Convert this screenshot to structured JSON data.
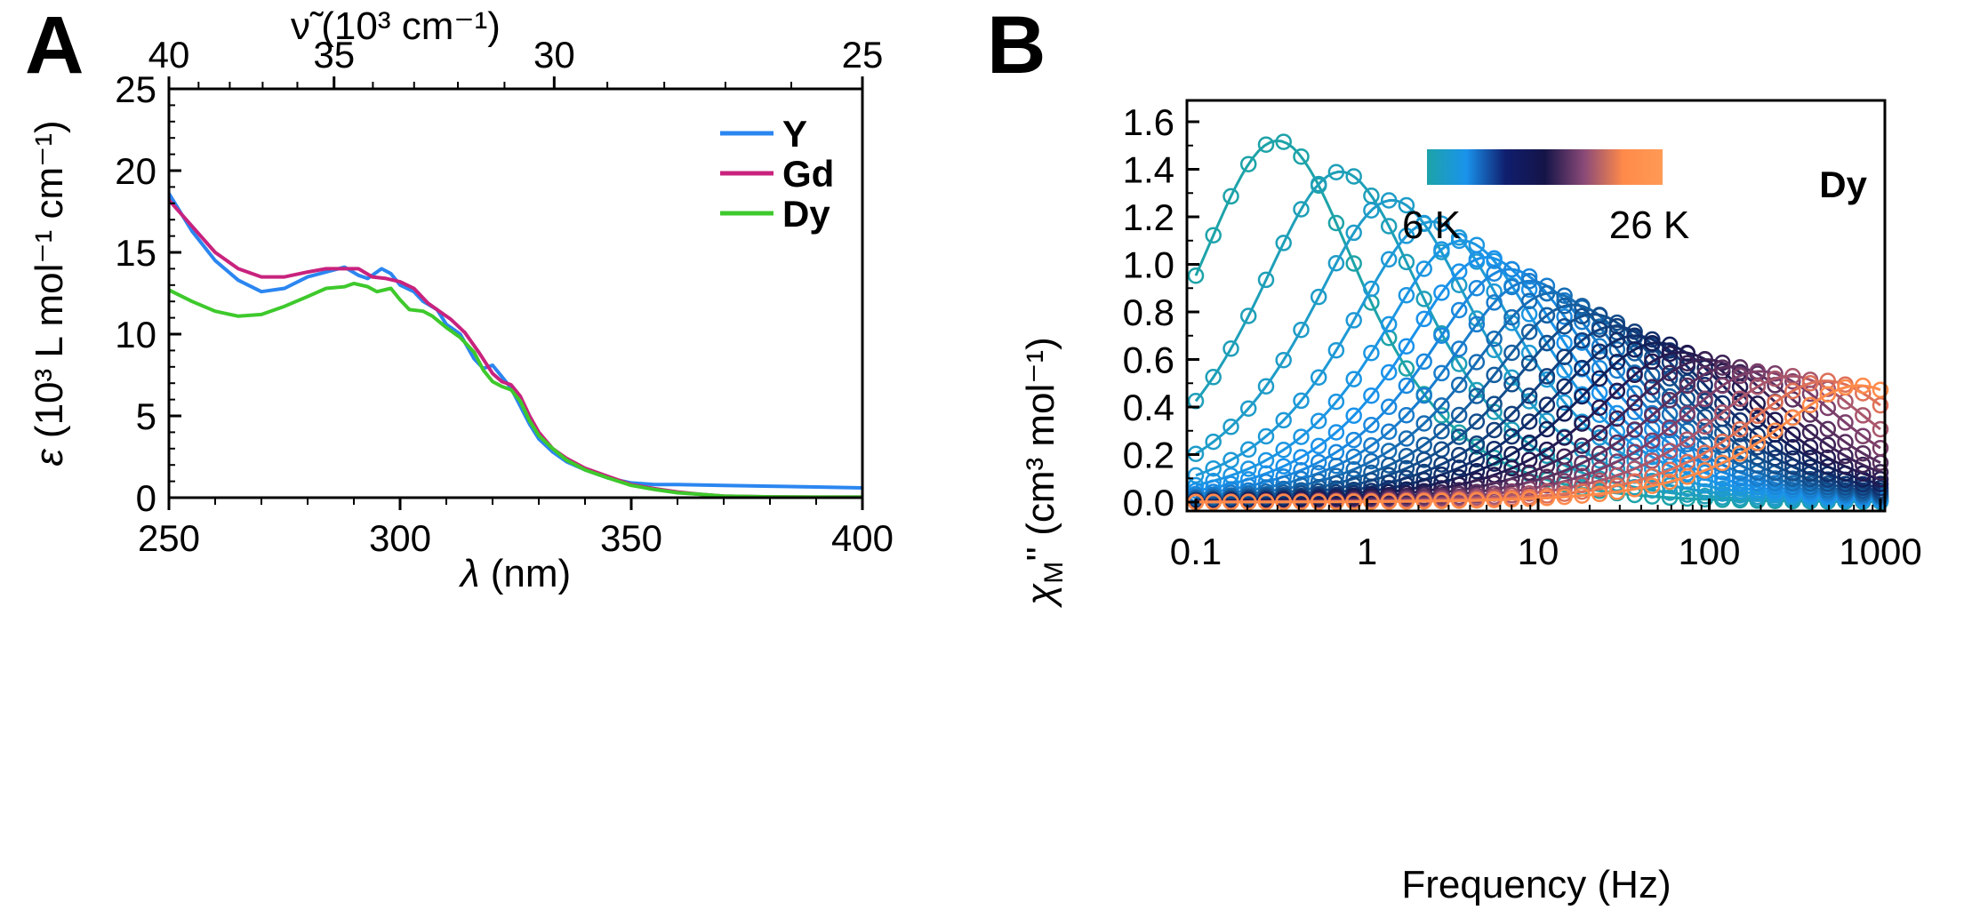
{
  "chart_data": [
    {
      "type": "line",
      "panel_label": "A",
      "xlabel_symbol": "λ",
      "xlabel_unit": " (nm)",
      "ylabel_symbol": "ε",
      "ylabel_unit": " (10³ L mol⁻¹ cm⁻¹)",
      "top_axis_label": "ν̃ (10³ cm⁻¹)",
      "xlim": [
        250,
        400
      ],
      "ylim": [
        0,
        25
      ],
      "x_ticks": [
        "250",
        "300",
        "350",
        "400"
      ],
      "y_ticks": [
        "0",
        "5",
        "10",
        "15",
        "20",
        "25"
      ],
      "top_ticks": [
        {
          "wavenumber": 40,
          "label": "40"
        },
        {
          "wavenumber": 35,
          "label": "35"
        },
        {
          "wavenumber": 30,
          "label": "30"
        },
        {
          "wavenumber": 25,
          "label": "25"
        }
      ],
      "legend_position": "top-right",
      "grid": false,
      "series": [
        {
          "name": "Y",
          "color": "#2b86f0",
          "points": [
            [
              250,
              18.6
            ],
            [
              255,
              16.3
            ],
            [
              260,
              14.5
            ],
            [
              265,
              13.3
            ],
            [
              270,
              12.6
            ],
            [
              275,
              12.8
            ],
            [
              280,
              13.5
            ],
            [
              284,
              13.8
            ],
            [
              288,
              14.1
            ],
            [
              291,
              13.6
            ],
            [
              293,
              13.4
            ],
            [
              296,
              14.0
            ],
            [
              298,
              13.7
            ],
            [
              300,
              13.0
            ],
            [
              303,
              12.6
            ],
            [
              305,
              12.0
            ],
            [
              308,
              11.5
            ],
            [
              310,
              10.6
            ],
            [
              313,
              10.0
            ],
            [
              316,
              8.5
            ],
            [
              318,
              7.9
            ],
            [
              320,
              8.1
            ],
            [
              322,
              7.4
            ],
            [
              324,
              6.7
            ],
            [
              326,
              5.6
            ],
            [
              328,
              4.5
            ],
            [
              330,
              3.6
            ],
            [
              333,
              2.8
            ],
            [
              336,
              2.2
            ],
            [
              340,
              1.7
            ],
            [
              345,
              1.2
            ],
            [
              350,
              0.9
            ],
            [
              355,
              0.8
            ],
            [
              360,
              0.8
            ],
            [
              370,
              0.75
            ],
            [
              380,
              0.7
            ],
            [
              390,
              0.65
            ],
            [
              400,
              0.6
            ]
          ]
        },
        {
          "name": "Gd",
          "color": "#c8237e",
          "points": [
            [
              250,
              18.2
            ],
            [
              255,
              16.6
            ],
            [
              260,
              15.0
            ],
            [
              265,
              14.0
            ],
            [
              270,
              13.5
            ],
            [
              275,
              13.5
            ],
            [
              280,
              13.8
            ],
            [
              284,
              14.0
            ],
            [
              288,
              14.0
            ],
            [
              291,
              14.0
            ],
            [
              294,
              13.5
            ],
            [
              297,
              13.4
            ],
            [
              300,
              13.2
            ],
            [
              303,
              12.8
            ],
            [
              306,
              11.9
            ],
            [
              309,
              11.3
            ],
            [
              311,
              10.9
            ],
            [
              314,
              10.1
            ],
            [
              317,
              8.9
            ],
            [
              320,
              7.6
            ],
            [
              322,
              7.1
            ],
            [
              324,
              6.9
            ],
            [
              326,
              6.2
            ],
            [
              328,
              5.0
            ],
            [
              330,
              4.0
            ],
            [
              333,
              3.0
            ],
            [
              336,
              2.4
            ],
            [
              340,
              1.8
            ],
            [
              345,
              1.3
            ],
            [
              350,
              0.8
            ],
            [
              355,
              0.55
            ],
            [
              360,
              0.35
            ],
            [
              365,
              0.2
            ],
            [
              370,
              0.1
            ],
            [
              380,
              0.05
            ],
            [
              390,
              0.03
            ],
            [
              400,
              0.03
            ]
          ]
        },
        {
          "name": "Dy",
          "color": "#3ec92c",
          "points": [
            [
              250,
              12.7
            ],
            [
              255,
              12.0
            ],
            [
              260,
              11.4
            ],
            [
              265,
              11.1
            ],
            [
              270,
              11.2
            ],
            [
              275,
              11.7
            ],
            [
              280,
              12.3
            ],
            [
              284,
              12.8
            ],
            [
              288,
              12.9
            ],
            [
              290,
              13.1
            ],
            [
              293,
              12.9
            ],
            [
              295,
              12.6
            ],
            [
              298,
              12.8
            ],
            [
              300,
              12.1
            ],
            [
              302,
              11.5
            ],
            [
              305,
              11.4
            ],
            [
              307,
              11.1
            ],
            [
              310,
              10.4
            ],
            [
              313,
              9.8
            ],
            [
              316,
              8.9
            ],
            [
              318,
              7.8
            ],
            [
              320,
              7.1
            ],
            [
              322,
              6.8
            ],
            [
              324,
              6.6
            ],
            [
              326,
              5.9
            ],
            [
              328,
              4.7
            ],
            [
              330,
              3.8
            ],
            [
              333,
              3.0
            ],
            [
              336,
              2.3
            ],
            [
              340,
              1.7
            ],
            [
              345,
              1.2
            ],
            [
              350,
              0.75
            ],
            [
              355,
              0.5
            ],
            [
              360,
              0.3
            ],
            [
              365,
              0.2
            ],
            [
              370,
              0.1
            ],
            [
              380,
              0.05
            ],
            [
              390,
              0.03
            ],
            [
              400,
              0.03
            ]
          ]
        }
      ]
    },
    {
      "type": "scatter",
      "panel_label": "B",
      "xlabel": "Frequency (Hz)",
      "ylabel_symbol": "χ",
      "ylabel_sub": "M",
      "ylabel_unit": "'' (cm³ mol⁻¹)",
      "x_scale": "log",
      "xlim": [
        0.1,
        1000
      ],
      "ylim": [
        0,
        1.6
      ],
      "x_ticks": [
        {
          "value": 0.1,
          "label": "0.1"
        },
        {
          "value": 1,
          "label": "1"
        },
        {
          "value": 10,
          "label": "10"
        },
        {
          "value": 100,
          "label": "100"
        },
        {
          "value": 1000,
          "label": "1000"
        }
      ],
      "y_ticks": [
        "0.0",
        "0.2",
        "0.4",
        "0.6",
        "0.8",
        "1.0",
        "1.2",
        "1.4",
        "1.6"
      ],
      "annotation": "Dy",
      "colorbar": {
        "position": "top-center",
        "low_label": "6 K",
        "high_label": "26 K",
        "colors": [
          "#1da3a8",
          "#1a93ec",
          "#101e6e",
          "#141447",
          "#8a4a78",
          "#ff8a4a",
          "#ff9a55"
        ]
      },
      "markers": "open-circles",
      "fit_lines": true,
      "grid": false,
      "series": [
        {
          "temperature_K": 6,
          "peak_freq_Hz": 0.3,
          "peak_value": 1.52,
          "color": "#1da3a8"
        },
        {
          "temperature_K": 7,
          "peak_freq_Hz": 0.7,
          "peak_value": 1.39,
          "color": "#1e9fb8"
        },
        {
          "temperature_K": 8,
          "peak_freq_Hz": 1.4,
          "peak_value": 1.27,
          "color": "#1f9cc8"
        },
        {
          "temperature_K": 9,
          "peak_freq_Hz": 2.4,
          "peak_value": 1.18,
          "color": "#1e99d6"
        },
        {
          "temperature_K": 10,
          "peak_freq_Hz": 3.6,
          "peak_value": 1.1,
          "color": "#1c96e2"
        },
        {
          "temperature_K": 11,
          "peak_freq_Hz": 5.0,
          "peak_value": 1.03,
          "color": "#1a92ea"
        },
        {
          "temperature_K": 12,
          "peak_freq_Hz": 6.8,
          "peak_value": 0.98,
          "color": "#1a88de"
        },
        {
          "temperature_K": 13,
          "peak_freq_Hz": 9.0,
          "peak_value": 0.93,
          "color": "#197ccc"
        },
        {
          "temperature_K": 14,
          "peak_freq_Hz": 12,
          "peak_value": 0.88,
          "color": "#176db4"
        },
        {
          "temperature_K": 15,
          "peak_freq_Hz": 16,
          "peak_value": 0.83,
          "color": "#155ea0"
        },
        {
          "temperature_K": 16,
          "peak_freq_Hz": 21,
          "peak_value": 0.79,
          "color": "#134e8c"
        },
        {
          "temperature_K": 17,
          "peak_freq_Hz": 28,
          "peak_value": 0.74,
          "color": "#123f7c"
        },
        {
          "temperature_K": 18,
          "peak_freq_Hz": 37,
          "peak_value": 0.7,
          "color": "#112f6c"
        },
        {
          "temperature_K": 19,
          "peak_freq_Hz": 50,
          "peak_value": 0.67,
          "color": "#12205a"
        },
        {
          "temperature_K": 20,
          "peak_freq_Hz": 68,
          "peak_value": 0.63,
          "color": "#241a52"
        },
        {
          "temperature_K": 21,
          "peak_freq_Hz": 95,
          "peak_value": 0.6,
          "color": "#3d2356"
        },
        {
          "temperature_K": 22,
          "peak_freq_Hz": 135,
          "peak_value": 0.57,
          "color": "#5a305f"
        },
        {
          "temperature_K": 23,
          "peak_freq_Hz": 200,
          "peak_value": 0.55,
          "color": "#7c3f6a"
        },
        {
          "temperature_K": 24,
          "peak_freq_Hz": 300,
          "peak_value": 0.53,
          "color": "#a9566c"
        },
        {
          "temperature_K": 25,
          "peak_freq_Hz": 480,
          "peak_value": 0.51,
          "color": "#de7058"
        },
        {
          "temperature_K": 26,
          "peak_freq_Hz": 750,
          "peak_value": 0.49,
          "color": "#ff8a4a"
        }
      ]
    }
  ]
}
